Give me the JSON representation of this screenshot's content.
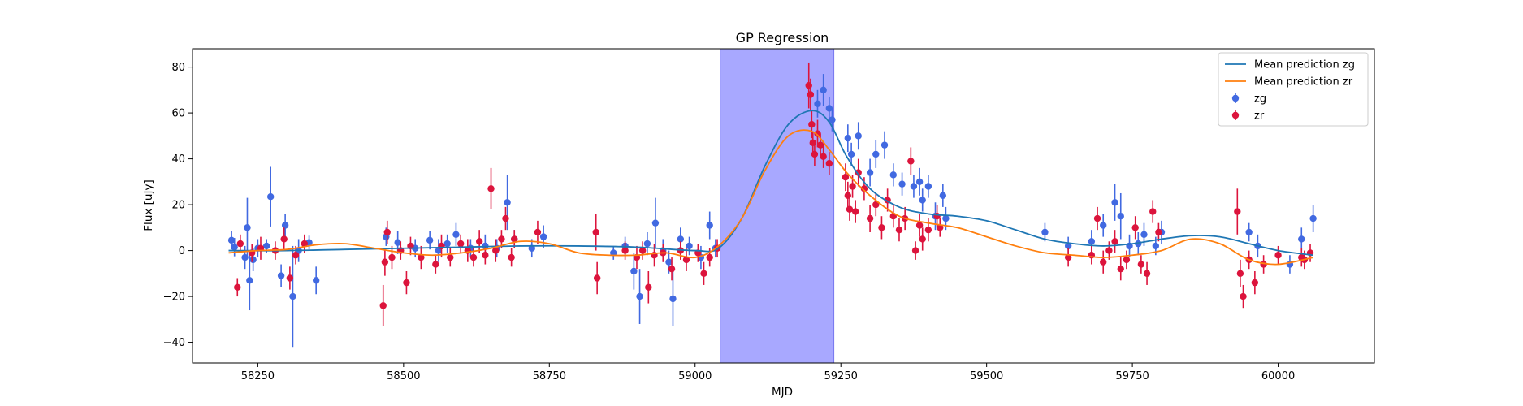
{
  "chart_data": {
    "type": "scatter",
    "title": "GP Regression",
    "xlabel": "MJD",
    "ylabel": "Flux [uJy]",
    "xlim": [
      58138,
      60165
    ],
    "ylim": [
      -49,
      88
    ],
    "xticks": [
      58250,
      58500,
      58750,
      59000,
      59250,
      59500,
      59750,
      60000
    ],
    "yticks": [
      -40,
      -20,
      0,
      20,
      40,
      60,
      80
    ],
    "grid": false,
    "legend_placement": "top-right",
    "shaded_region": {
      "x_start": 59043,
      "x_end": 59238,
      "color": "#a8a8ff"
    },
    "lines": [
      {
        "name": "Mean prediction zg",
        "color": "#1f77b4",
        "x": [
          58200,
          58300,
          58400,
          58500,
          58600,
          58700,
          58800,
          58900,
          59000,
          59040,
          59080,
          59120,
          59160,
          59200,
          59230,
          59260,
          59300,
          59350,
          59400,
          59450,
          59500,
          59550,
          59600,
          59650,
          59700,
          59750,
          59800,
          59850,
          59900,
          59950,
          60000,
          60060
        ],
        "y": [
          0,
          0,
          0.5,
          1,
          1.5,
          2,
          2,
          1.5,
          0,
          1,
          14,
          37,
          55,
          61,
          56,
          41,
          27,
          19,
          16,
          15,
          13,
          9,
          5,
          3,
          2,
          3,
          5,
          6.5,
          6,
          3,
          0,
          -2
        ]
      },
      {
        "name": "Mean prediction zr",
        "color": "#ff7f0e",
        "x": [
          58200,
          58250,
          58300,
          58350,
          58400,
          58450,
          58500,
          58550,
          58600,
          58650,
          58700,
          58750,
          58800,
          58850,
          58900,
          58950,
          59000,
          59040,
          59080,
          59120,
          59160,
          59200,
          59230,
          59260,
          59300,
          59350,
          59400,
          59450,
          59500,
          59550,
          59600,
          59650,
          59700,
          59750,
          59800,
          59850,
          59900,
          59950,
          60000,
          60060
        ],
        "y": [
          -1,
          0,
          0.5,
          2.5,
          3,
          1,
          -1,
          -2,
          -1,
          1,
          4,
          3,
          -1,
          -2,
          -2,
          -1,
          -3,
          2,
          14,
          35,
          50,
          52,
          44,
          34,
          24,
          15,
          12,
          10,
          6,
          2,
          -1,
          -2,
          -3,
          -2,
          0,
          5,
          3,
          -4,
          -6,
          -3
        ]
      }
    ],
    "series": [
      {
        "name": "zg",
        "color": "#4169e1",
        "points": [
          [
            58205,
            4.5,
            4
          ],
          [
            58210,
            1.5,
            4
          ],
          [
            58228,
            -3,
            5
          ],
          [
            58232,
            10,
            13
          ],
          [
            58236,
            -13,
            13
          ],
          [
            58242,
            -4,
            5
          ],
          [
            58250,
            1,
            4
          ],
          [
            58265,
            2,
            3
          ],
          [
            58272,
            23.5,
            13
          ],
          [
            58290,
            -11,
            5
          ],
          [
            58297,
            11,
            5
          ],
          [
            58310,
            -20,
            22
          ],
          [
            58320,
            0,
            5
          ],
          [
            58338,
            3.5,
            3
          ],
          [
            58350,
            -13,
            6
          ],
          [
            58470,
            6,
            4
          ],
          [
            58490,
            3.5,
            5
          ],
          [
            58520,
            1,
            4
          ],
          [
            58545,
            4.5,
            4
          ],
          [
            58560,
            0,
            5
          ],
          [
            58575,
            3,
            4
          ],
          [
            58590,
            7,
            5
          ],
          [
            58615,
            1,
            4
          ],
          [
            58640,
            2,
            5
          ],
          [
            58660,
            1,
            4
          ],
          [
            58678,
            21,
            12
          ],
          [
            58690,
            5,
            4
          ],
          [
            58720,
            1,
            4
          ],
          [
            58740,
            6,
            5
          ],
          [
            58860,
            -1,
            3
          ],
          [
            58880,
            2,
            4
          ],
          [
            58895,
            -9,
            8
          ],
          [
            58905,
            -20,
            12
          ],
          [
            58918,
            3,
            5
          ],
          [
            58932,
            12,
            11
          ],
          [
            58945,
            0,
            5
          ],
          [
            58955,
            -5,
            5
          ],
          [
            58962,
            -21,
            12
          ],
          [
            58975,
            5,
            5
          ],
          [
            58990,
            2,
            4
          ],
          [
            59010,
            -3,
            5
          ],
          [
            59025,
            11,
            6
          ],
          [
            59035,
            1,
            4
          ],
          [
            59210,
            64,
            6
          ],
          [
            59220,
            70,
            7
          ],
          [
            59230,
            62,
            5
          ],
          [
            59235,
            57,
            5
          ],
          [
            59262,
            49,
            6
          ],
          [
            59268,
            42,
            5
          ],
          [
            59280,
            50,
            6
          ],
          [
            59300,
            34,
            6
          ],
          [
            59310,
            42,
            6
          ],
          [
            59325,
            46,
            6
          ],
          [
            59340,
            33,
            5
          ],
          [
            59355,
            29,
            5
          ],
          [
            59375,
            28,
            5
          ],
          [
            59385,
            30,
            6
          ],
          [
            59390,
            22,
            5
          ],
          [
            59400,
            28,
            5
          ],
          [
            59412,
            15,
            6
          ],
          [
            59425,
            24,
            5
          ],
          [
            59430,
            14,
            5
          ],
          [
            59600,
            8,
            4
          ],
          [
            59640,
            2,
            4
          ],
          [
            59680,
            4,
            5
          ],
          [
            59700,
            11,
            5
          ],
          [
            59720,
            21,
            8
          ],
          [
            59730,
            15,
            10
          ],
          [
            59745,
            2,
            5
          ],
          [
            59760,
            3,
            5
          ],
          [
            59770,
            7,
            5
          ],
          [
            59790,
            2,
            4
          ],
          [
            59800,
            8,
            5
          ],
          [
            59950,
            8,
            4
          ],
          [
            59965,
            2,
            5
          ],
          [
            60020,
            -6,
            4
          ],
          [
            60040,
            5,
            5
          ],
          [
            60060,
            14,
            6
          ]
        ]
      },
      {
        "name": "zr",
        "color": "#dc143c",
        "points": [
          [
            58215,
            -16,
            4
          ],
          [
            58220,
            3,
            4
          ],
          [
            58240,
            -1,
            4
          ],
          [
            58255,
            1,
            5
          ],
          [
            58280,
            0,
            4
          ],
          [
            58295,
            5,
            5
          ],
          [
            58305,
            -12,
            5
          ],
          [
            58315,
            -2,
            4
          ],
          [
            58330,
            3,
            4
          ],
          [
            58465,
            -24,
            9
          ],
          [
            58468,
            -5,
            6
          ],
          [
            58472,
            8,
            5
          ],
          [
            58480,
            -3,
            5
          ],
          [
            58495,
            0,
            4
          ],
          [
            58505,
            -14,
            5
          ],
          [
            58512,
            2,
            4
          ],
          [
            58530,
            -3,
            5
          ],
          [
            58555,
            -6,
            4
          ],
          [
            58565,
            2,
            5
          ],
          [
            58580,
            -3,
            4
          ],
          [
            58598,
            3,
            4
          ],
          [
            58610,
            0,
            5
          ],
          [
            58620,
            -3,
            4
          ],
          [
            58630,
            4,
            5
          ],
          [
            58640,
            -2,
            4
          ],
          [
            58650,
            27,
            9
          ],
          [
            58658,
            0,
            5
          ],
          [
            58668,
            5,
            4
          ],
          [
            58675,
            14,
            5
          ],
          [
            58685,
            -3,
            4
          ],
          [
            58690,
            5,
            4
          ],
          [
            58730,
            8,
            5
          ],
          [
            58830,
            8,
            8
          ],
          [
            58832,
            -12,
            7
          ],
          [
            58880,
            0,
            4
          ],
          [
            58900,
            -3,
            5
          ],
          [
            58910,
            0,
            4
          ],
          [
            58920,
            -16,
            7
          ],
          [
            58930,
            -2,
            5
          ],
          [
            58945,
            -1,
            4
          ],
          [
            58960,
            -8,
            5
          ],
          [
            58975,
            0,
            4
          ],
          [
            58985,
            -4,
            5
          ],
          [
            59005,
            -1,
            4
          ],
          [
            59015,
            -10,
            5
          ],
          [
            59025,
            -3,
            4
          ],
          [
            59038,
            1,
            4
          ],
          [
            59195,
            72,
            10
          ],
          [
            59198,
            68,
            7
          ],
          [
            59200,
            55,
            6
          ],
          [
            59202,
            47,
            5
          ],
          [
            59205,
            42,
            5
          ],
          [
            59210,
            51,
            6
          ],
          [
            59215,
            46,
            5
          ],
          [
            59220,
            41,
            5
          ],
          [
            59230,
            38,
            5
          ],
          [
            59258,
            32,
            6
          ],
          [
            59262,
            24,
            6
          ],
          [
            59265,
            18,
            5
          ],
          [
            59270,
            28,
            5
          ],
          [
            59275,
            17,
            5
          ],
          [
            59280,
            34,
            6
          ],
          [
            59290,
            27,
            5
          ],
          [
            59300,
            14,
            6
          ],
          [
            59310,
            20,
            5
          ],
          [
            59320,
            10,
            5
          ],
          [
            59330,
            22,
            5
          ],
          [
            59340,
            15,
            5
          ],
          [
            59350,
            9,
            5
          ],
          [
            59360,
            14,
            5
          ],
          [
            59370,
            39,
            6
          ],
          [
            59378,
            0,
            4
          ],
          [
            59385,
            11,
            5
          ],
          [
            59390,
            5,
            5
          ],
          [
            59400,
            9,
            5
          ],
          [
            59415,
            15,
            5
          ],
          [
            59420,
            10,
            4
          ],
          [
            59640,
            -3,
            4
          ],
          [
            59680,
            -2,
            4
          ],
          [
            59690,
            14,
            5
          ],
          [
            59700,
            -5,
            5
          ],
          [
            59710,
            0,
            4
          ],
          [
            59720,
            4,
            5
          ],
          [
            59730,
            -8,
            5
          ],
          [
            59740,
            -4,
            4
          ],
          [
            59755,
            10,
            5
          ],
          [
            59765,
            -6,
            4
          ],
          [
            59775,
            -10,
            5
          ],
          [
            59785,
            17,
            5
          ],
          [
            59795,
            8,
            4
          ],
          [
            59930,
            17,
            10
          ],
          [
            59935,
            -10,
            6
          ],
          [
            59940,
            -20,
            5
          ],
          [
            59950,
            -4,
            4
          ],
          [
            59960,
            -14,
            5
          ],
          [
            59975,
            -6,
            4
          ],
          [
            60000,
            -2,
            4
          ],
          [
            60040,
            -3,
            4
          ],
          [
            60045,
            -4,
            4
          ],
          [
            60055,
            -1,
            4
          ]
        ]
      }
    ],
    "legend": [
      {
        "label": "Mean prediction zg",
        "kind": "line",
        "color": "#1f77b4"
      },
      {
        "label": "Mean prediction zr",
        "kind": "line",
        "color": "#ff7f0e"
      },
      {
        "label": "zg",
        "kind": "marker",
        "color": "#4169e1"
      },
      {
        "label": "zr",
        "kind": "marker",
        "color": "#dc143c"
      }
    ]
  }
}
